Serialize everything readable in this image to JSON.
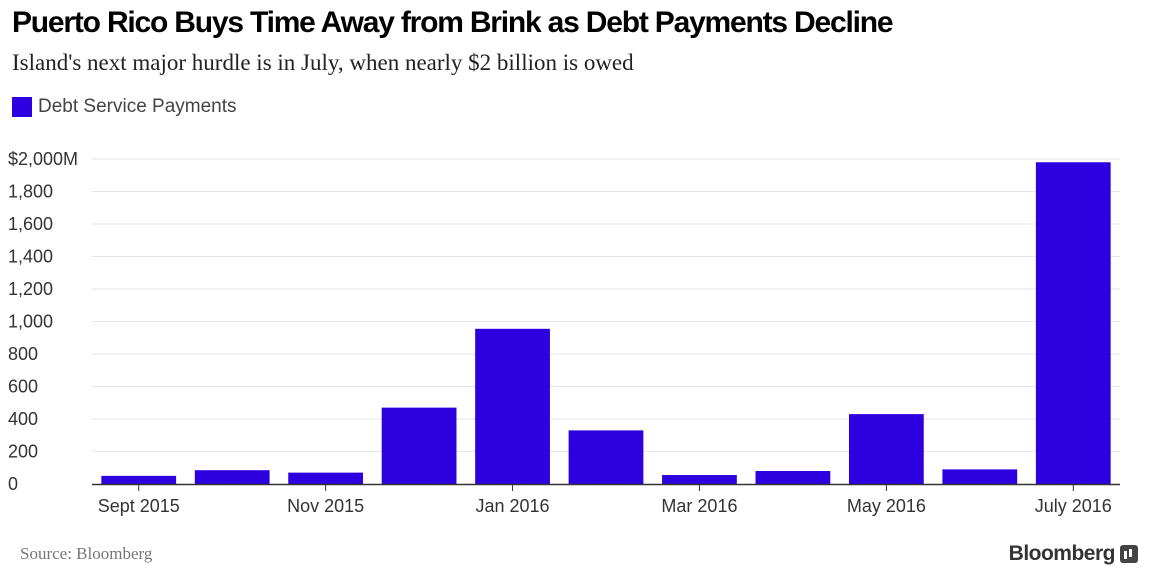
{
  "header": {
    "title": "Puerto Rico Buys Time Away from Brink as Debt Payments Decline",
    "subtitle": "Island's next major hurdle is in July, when nearly $2 billion is owed"
  },
  "footer": {
    "source": "Source: Bloomberg",
    "brand": "Bloomberg",
    "brand_icon": "bloomberg-chart-icon"
  },
  "colors": {
    "bar": "#2d00e0",
    "grid": "#e6e6e6",
    "axis": "#333333",
    "tick_text": "#333333"
  },
  "chart_data": {
    "type": "bar",
    "title": "Puerto Rico Buys Time Away from Brink as Debt Payments Decline",
    "subtitle": "Island's next major hurdle is in July, when nearly $2 billion is owed",
    "categories": [
      "Sept 2015",
      "Oct 2015",
      "Nov 2015",
      "Dec 2015",
      "Jan 2016",
      "Feb 2016",
      "Mar 2016",
      "Apr 2016",
      "May 2016",
      "June 2016",
      "July 2016"
    ],
    "series": [
      {
        "name": "Debt Service Payments",
        "values": [
          50,
          85,
          70,
          470,
          955,
          330,
          55,
          80,
          430,
          90,
          1980
        ]
      }
    ],
    "x_tick_labels": [
      "Sept 2015",
      "Nov 2015",
      "Jan 2016",
      "Mar 2016",
      "May 2016",
      "July 2016"
    ],
    "y_ticks": [
      0,
      200,
      400,
      600,
      800,
      1000,
      1200,
      1400,
      1600,
      1800,
      2000
    ],
    "y_tick_labels": [
      "0",
      "200",
      "400",
      "600",
      "800",
      "1,000",
      "1,200",
      "1,400",
      "1,600",
      "1,800",
      "$2,000M"
    ],
    "ylim": [
      0,
      2000
    ],
    "xlabel": "",
    "ylabel": "",
    "grid": true,
    "legend": "top-left"
  }
}
